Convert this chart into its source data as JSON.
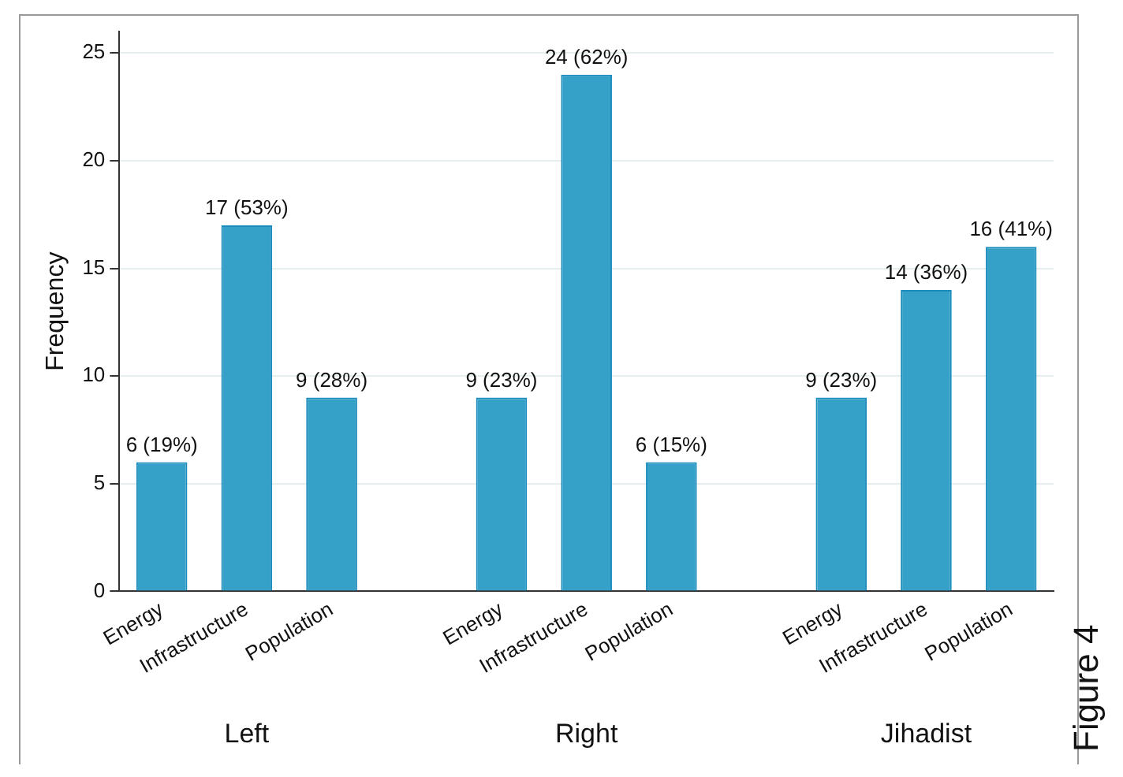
{
  "chart_data": {
    "type": "bar",
    "ylabel": "Frequency",
    "categories": [
      "Energy",
      "Infrastructure",
      "Population",
      null,
      "Energy",
      "Infrastructure",
      "Population",
      null,
      "Energy",
      "Infrastructure",
      "Population"
    ],
    "values": [
      6,
      17,
      9,
      null,
      9,
      24,
      6,
      null,
      9,
      14,
      16
    ],
    "value_labels": [
      "6 (19%)",
      "17 (53%)",
      "9 (28%)",
      null,
      "9 (23%)",
      "24 (62%)",
      "6 (15%)",
      null,
      "9 (23%)",
      "14 (36%)",
      "16 (41%)"
    ],
    "color": "#35a0c8",
    "ylim": [
      0,
      26
    ],
    "yticks": [
      0,
      5,
      10,
      15,
      20,
      25
    ],
    "grid": "y",
    "legend": false,
    "annotations": [
      "Left",
      "Right",
      "Jihadist",
      "Figure 4"
    ]
  }
}
